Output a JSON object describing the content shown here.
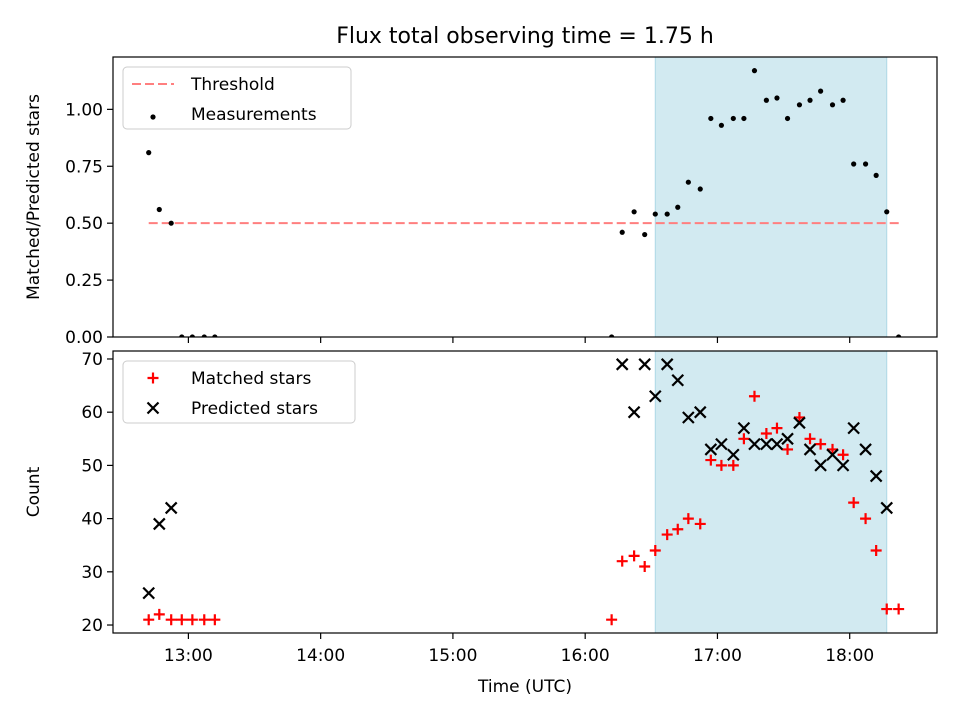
{
  "title": "Flux total observing time = 1.75 h",
  "colors": {
    "shade": "#add8e6",
    "threshold": "#ff7f7f",
    "matched": "#ff0000",
    "predicted": "#000000",
    "measurement": "#000000"
  },
  "chart_data": [
    {
      "type": "scatter",
      "panel": "top",
      "ylabel": "Matched/Predicted stars",
      "xlim": [
        12.43,
        18.66
      ],
      "ylim": [
        0,
        1.23
      ],
      "yticks": [
        0,
        0.25,
        0.5,
        0.75,
        1.0
      ],
      "ytick_labels": [
        "0.00",
        "0.25",
        "0.50",
        "0.75",
        "1.00"
      ],
      "shaded_span": [
        16.53,
        18.28
      ],
      "legend": {
        "placement": "upper-left",
        "entries": [
          "Threshold",
          "Measurements"
        ]
      },
      "threshold": {
        "name": "Threshold",
        "x": [
          12.7,
          18.38
        ],
        "y": 0.5
      },
      "series": [
        {
          "name": "Measurements",
          "marker": "dot",
          "points": [
            [
              12.7,
              0.81
            ],
            [
              12.78,
              0.56
            ],
            [
              12.87,
              0.5
            ],
            [
              12.95,
              0.0
            ],
            [
              13.03,
              0.0
            ],
            [
              13.12,
              0.0
            ],
            [
              13.2,
              0.0
            ],
            [
              16.2,
              0.0
            ],
            [
              16.28,
              0.46
            ],
            [
              16.37,
              0.55
            ],
            [
              16.45,
              0.45
            ],
            [
              16.53,
              0.54
            ],
            [
              16.62,
              0.54
            ],
            [
              16.7,
              0.57
            ],
            [
              16.78,
              0.68
            ],
            [
              16.87,
              0.65
            ],
            [
              16.95,
              0.96
            ],
            [
              17.03,
              0.93
            ],
            [
              17.12,
              0.96
            ],
            [
              17.2,
              0.96
            ],
            [
              17.28,
              1.17
            ],
            [
              17.37,
              1.04
            ],
            [
              17.45,
              1.05
            ],
            [
              17.53,
              0.96
            ],
            [
              17.62,
              1.02
            ],
            [
              17.7,
              1.04
            ],
            [
              17.78,
              1.08
            ],
            [
              17.87,
              1.02
            ],
            [
              17.95,
              1.04
            ],
            [
              18.03,
              0.76
            ],
            [
              18.12,
              0.76
            ],
            [
              18.2,
              0.71
            ],
            [
              18.28,
              0.55
            ],
            [
              18.37,
              0.0
            ]
          ]
        }
      ]
    },
    {
      "type": "scatter",
      "panel": "bottom",
      "xlabel": "Time (UTC)",
      "ylabel": "Count",
      "xlim": [
        12.43,
        18.66
      ],
      "ylim": [
        18.5,
        71.5
      ],
      "xticks": [
        13,
        14,
        15,
        16,
        17,
        18
      ],
      "xtick_labels": [
        "13:00",
        "14:00",
        "15:00",
        "16:00",
        "17:00",
        "18:00"
      ],
      "yticks": [
        20,
        30,
        40,
        50,
        60,
        70
      ],
      "ytick_labels": [
        "20",
        "30",
        "40",
        "50",
        "60",
        "70"
      ],
      "shaded_span": [
        16.53,
        18.28
      ],
      "legend": {
        "placement": "upper-left",
        "entries": [
          "Matched stars",
          "Predicted stars"
        ]
      },
      "series": [
        {
          "name": "Matched stars",
          "marker": "plus",
          "points": [
            [
              12.7,
              21
            ],
            [
              12.78,
              22
            ],
            [
              12.87,
              21
            ],
            [
              12.95,
              21
            ],
            [
              13.03,
              21
            ],
            [
              13.12,
              21
            ],
            [
              13.2,
              21
            ],
            [
              16.2,
              21
            ],
            [
              16.28,
              32
            ],
            [
              16.37,
              33
            ],
            [
              16.45,
              31
            ],
            [
              16.53,
              34
            ],
            [
              16.62,
              37
            ],
            [
              16.7,
              38
            ],
            [
              16.78,
              40
            ],
            [
              16.87,
              39
            ],
            [
              16.95,
              51
            ],
            [
              17.03,
              50
            ],
            [
              17.12,
              50
            ],
            [
              17.2,
              55
            ],
            [
              17.28,
              63
            ],
            [
              17.37,
              56
            ],
            [
              17.45,
              57
            ],
            [
              17.53,
              53
            ],
            [
              17.62,
              59
            ],
            [
              17.7,
              55
            ],
            [
              17.78,
              54
            ],
            [
              17.87,
              53
            ],
            [
              17.95,
              52
            ],
            [
              18.03,
              43
            ],
            [
              18.12,
              40
            ],
            [
              18.2,
              34
            ],
            [
              18.28,
              23
            ],
            [
              18.37,
              23
            ]
          ]
        },
        {
          "name": "Predicted stars",
          "marker": "x",
          "points": [
            [
              12.7,
              26
            ],
            [
              12.78,
              39
            ],
            [
              12.87,
              42
            ],
            [
              16.28,
              69
            ],
            [
              16.37,
              60
            ],
            [
              16.45,
              69
            ],
            [
              16.53,
              63
            ],
            [
              16.62,
              69
            ],
            [
              16.7,
              66
            ],
            [
              16.78,
              59
            ],
            [
              16.87,
              60
            ],
            [
              16.95,
              53
            ],
            [
              17.03,
              54
            ],
            [
              17.12,
              52
            ],
            [
              17.2,
              57
            ],
            [
              17.28,
              54
            ],
            [
              17.37,
              54
            ],
            [
              17.45,
              54
            ],
            [
              17.53,
              55
            ],
            [
              17.62,
              58
            ],
            [
              17.7,
              53
            ],
            [
              17.78,
              50
            ],
            [
              17.87,
              52
            ],
            [
              17.95,
              50
            ],
            [
              18.03,
              57
            ],
            [
              18.12,
              53
            ],
            [
              18.2,
              48
            ],
            [
              18.28,
              42
            ]
          ]
        }
      ]
    }
  ]
}
